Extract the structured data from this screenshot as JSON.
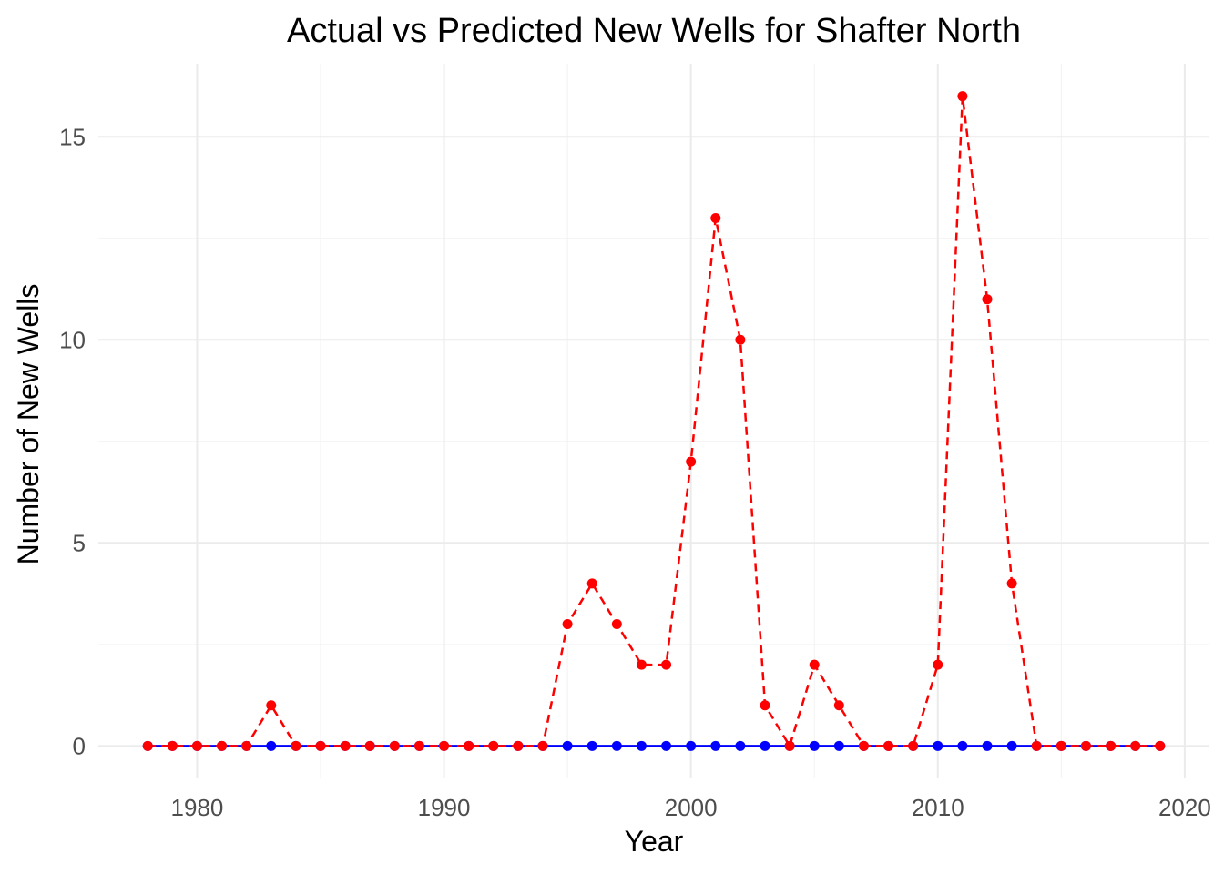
{
  "chart_data": {
    "type": "line",
    "title": "Actual vs Predicted New Wells for Shafter  North",
    "xlabel": "Year",
    "ylabel": "Number of New Wells",
    "xlim": [
      1976,
      2021
    ],
    "ylim": [
      -0.8,
      16.8
    ],
    "xticks": [
      1980,
      1990,
      2000,
      2010,
      2020
    ],
    "yticks": [
      0,
      5,
      10,
      15
    ],
    "grid": true,
    "legend": "none",
    "x": [
      1978,
      1979,
      1980,
      1981,
      1982,
      1983,
      1984,
      1985,
      1986,
      1987,
      1988,
      1989,
      1990,
      1991,
      1992,
      1993,
      1994,
      1995,
      1996,
      1997,
      1998,
      1999,
      2000,
      2001,
      2002,
      2003,
      2004,
      2005,
      2006,
      2007,
      2008,
      2009,
      2010,
      2011,
      2012,
      2013,
      2014,
      2015,
      2016,
      2017,
      2018,
      2019
    ],
    "series": [
      {
        "color": "#0000ff",
        "line_style": "solid",
        "values": [
          0,
          0,
          0,
          0,
          0,
          0,
          0,
          0,
          0,
          0,
          0,
          0,
          0,
          0,
          0,
          0,
          0,
          0,
          0,
          0,
          0,
          0,
          0,
          0,
          0,
          0,
          0,
          0,
          0,
          0,
          0,
          0,
          0,
          0,
          0,
          0,
          0,
          0,
          0,
          0,
          0,
          0
        ]
      },
      {
        "color": "#ff0000",
        "line_style": "dashed",
        "values": [
          0,
          0,
          0,
          0,
          0,
          1,
          0,
          0,
          0,
          0,
          0,
          0,
          0,
          0,
          0,
          0,
          0,
          3,
          4,
          3,
          2,
          2,
          7,
          13,
          10,
          1,
          0,
          2,
          1,
          0,
          0,
          0,
          2,
          16,
          11,
          4,
          0,
          0,
          0,
          0,
          0,
          0
        ]
      }
    ]
  }
}
